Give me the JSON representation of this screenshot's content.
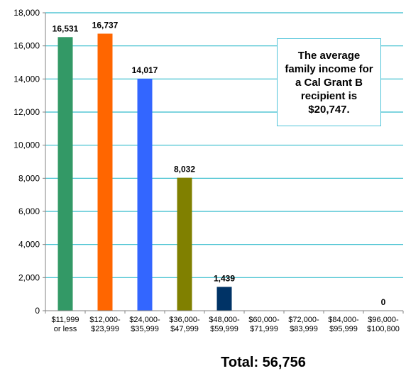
{
  "chart_data": {
    "type": "bar",
    "categories": [
      [
        "$11,999",
        "or less"
      ],
      [
        "$12,000-",
        "$23,999"
      ],
      [
        "$24,000-",
        "$35,999"
      ],
      [
        "$36,000-",
        "$47,999"
      ],
      [
        "$48,000-",
        "$59,999"
      ],
      [
        "$60,000-",
        "$71,999"
      ],
      [
        "$72,000-",
        "$83,999"
      ],
      [
        "$84,000-",
        "$95,999"
      ],
      [
        "$96,000-",
        "$100,800"
      ]
    ],
    "values": [
      16531,
      16737,
      14017,
      8032,
      1439,
      null,
      null,
      null,
      0
    ],
    "data_labels": [
      "16,531",
      "16,737",
      "14,017",
      "8,032",
      "1,439",
      "",
      "",
      "",
      "0"
    ],
    "bar_colors": [
      "#339966",
      "#ff6600",
      "#3366ff",
      "#808000",
      "#003366",
      "#339966",
      "#339966",
      "#339966",
      "#339966"
    ],
    "y_ticks": [
      0,
      2000,
      4000,
      6000,
      8000,
      10000,
      12000,
      14000,
      16000,
      18000
    ],
    "y_tick_labels": [
      "0",
      "2,000",
      "4,000",
      "6,000",
      "8,000",
      "10,000",
      "12,000",
      "14,000",
      "16,000",
      "18,000"
    ],
    "ylim": [
      0,
      18000
    ],
    "grid": true,
    "gridline_color": "#33bbcc",
    "annotation": "The average family income for a Cal Grant B recipient is $20,747.",
    "total_label": "Total:",
    "total_value": "56,756"
  }
}
